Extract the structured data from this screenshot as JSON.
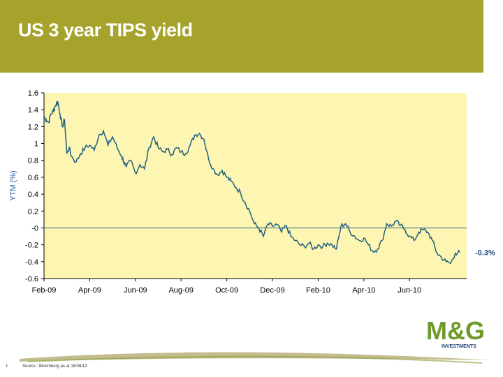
{
  "page": {
    "title": "US 3 year TIPS yield",
    "page_number": "1",
    "source": "Source : Bloomberg as at 16/08/10",
    "logo_text": "M&G",
    "logo_subtext": "INVESTMENTS"
  },
  "colors": {
    "header": "#a6a32c",
    "plot_bg": "#fdf5b2",
    "line": "#1f5f7f",
    "logo_green": "#6f9a2a",
    "logo_navy": "#1f3f6f"
  },
  "chart_data": {
    "type": "line",
    "title": "",
    "xlabel": "",
    "ylabel": "YTM (%)",
    "ylim": [
      -0.6,
      1.6
    ],
    "yticks": [
      1.6,
      1.4,
      1.2,
      1,
      0.8,
      0.6,
      0.4,
      0.2,
      0,
      -0.2,
      -0.4,
      -0.6
    ],
    "ytick_labels": [
      "1.6",
      "1.4",
      "1.2",
      "1",
      "0.8",
      "0.6",
      "0.4",
      "0.2",
      "-0",
      "-0.2",
      "-0.4",
      "-0.6"
    ],
    "xlim": [
      0,
      18.5
    ],
    "x_tick_pos": [
      0,
      2,
      4,
      6,
      8,
      10,
      12,
      14,
      16
    ],
    "x_tick_labels": [
      "Feb-09",
      "Apr-09",
      "Jun-09",
      "Aug-09",
      "Oct-09",
      "Dec-09",
      "Feb-10",
      "Apr-10",
      "Jun-10"
    ],
    "zero_line": true,
    "end_label": "-0.3%",
    "series": [
      {
        "x": [
          0,
          0.1,
          0.2,
          0.3,
          0.4,
          0.5,
          0.6,
          0.7,
          0.8,
          0.9,
          1.0,
          1.1,
          1.2,
          1.4,
          1.6,
          1.8,
          2.0,
          2.2,
          2.4,
          2.6,
          2.8,
          3.0,
          3.2,
          3.4,
          3.5,
          3.6,
          3.8,
          4.0,
          4.2,
          4.4,
          4.6,
          4.8,
          5.0,
          5.2,
          5.4,
          5.6,
          5.8,
          6.0,
          6.2,
          6.4,
          6.6,
          6.8,
          7.0,
          7.2,
          7.4,
          7.6,
          7.8,
          8.0,
          8.2,
          8.4,
          8.6,
          8.8,
          9.0,
          9.2,
          9.4,
          9.6,
          9.8,
          10.0,
          10.2,
          10.4,
          10.6,
          10.8,
          11.0,
          11.2,
          11.4,
          11.6,
          11.8,
          12.0,
          12.2,
          12.4,
          12.6,
          12.8,
          13.0,
          13.2,
          13.4,
          13.6,
          13.8,
          14.0,
          14.2,
          14.4,
          14.6,
          14.8,
          15.0,
          15.2,
          15.4,
          15.6,
          15.8,
          16.0,
          16.2,
          16.4,
          16.6,
          16.8,
          17.0,
          17.2,
          17.4,
          17.6,
          17.8,
          18.0,
          18.2
        ],
        "y": [
          1.32,
          1.28,
          1.25,
          1.35,
          1.38,
          1.45,
          1.5,
          1.35,
          1.2,
          1.28,
          0.88,
          0.95,
          0.85,
          0.78,
          0.88,
          0.95,
          0.98,
          0.92,
          1.1,
          1.15,
          0.98,
          1.08,
          0.95,
          0.85,
          0.78,
          0.72,
          0.8,
          0.65,
          0.75,
          0.7,
          0.95,
          1.08,
          0.95,
          0.9,
          0.93,
          0.87,
          0.95,
          0.9,
          0.88,
          0.98,
          1.1,
          1.12,
          1.05,
          0.82,
          0.7,
          0.63,
          0.68,
          0.6,
          0.55,
          0.48,
          0.42,
          0.3,
          0.2,
          0.05,
          0.0,
          -0.1,
          0.05,
          0.02,
          0.04,
          -0.05,
          0.03,
          -0.1,
          -0.15,
          -0.2,
          -0.22,
          -0.18,
          -0.25,
          -0.2,
          -0.22,
          -0.18,
          -0.2,
          -0.25,
          0.02,
          0.05,
          -0.05,
          -0.1,
          -0.15,
          -0.12,
          -0.2,
          -0.28,
          -0.25,
          -0.15,
          0.05,
          0.02,
          0.08,
          0.03,
          -0.02,
          -0.1,
          -0.15,
          -0.05,
          -0.02,
          -0.05,
          -0.15,
          -0.3,
          -0.35,
          -0.4,
          -0.42,
          -0.3,
          -0.29
        ]
      }
    ]
  }
}
